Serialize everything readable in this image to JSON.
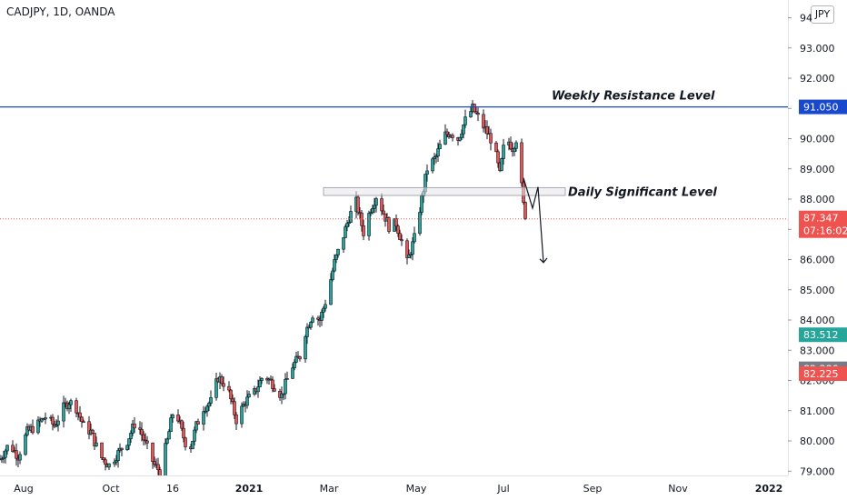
{
  "header": {
    "symbol": "CADJPY, 1D, OANDA",
    "currency": "JPY"
  },
  "colors": {
    "up": "#26a69a",
    "down": "#ef5350",
    "wick": "#131722",
    "resistance": "#1848cc",
    "current_line": "#ef5350",
    "green_badge": "#26a69a",
    "gray_badge": "#787b86",
    "red_badge": "#ef5350",
    "blue_badge": "#1848cc"
  },
  "chart_data": {
    "type": "candlestick",
    "symbol": "CADJPY",
    "timeframe": "1D",
    "source": "OANDA",
    "ylim": [
      78.9,
      94.2
    ],
    "y_ticks": [
      "94",
      "93.000",
      "92.000",
      "91.000",
      "90.000",
      "89.000",
      "88.000",
      "87.000",
      "86.000",
      "85.000",
      "84.000",
      "83.000",
      "82.000",
      "81.000",
      "80.000",
      "79.000"
    ],
    "y_tick_values": [
      94,
      93,
      92,
      91,
      90,
      89,
      88,
      87,
      86,
      85,
      84,
      83,
      82,
      81,
      80,
      79
    ],
    "x_ticks": [
      {
        "label": "Aug",
        "day": 13,
        "bold": false
      },
      {
        "label": "Oct",
        "day": 61,
        "bold": false
      },
      {
        "label": "16",
        "day": 95,
        "bold": false
      },
      {
        "label": "2021",
        "day": 137,
        "bold": true
      },
      {
        "label": "Mar",
        "day": 181,
        "bold": false
      },
      {
        "label": "May",
        "day": 229,
        "bold": false
      },
      {
        "label": "Jul",
        "day": 277,
        "bold": false
      },
      {
        "label": "Sep",
        "day": 326,
        "bold": false
      },
      {
        "label": "Nov",
        "day": 373,
        "bold": false
      },
      {
        "label": "2022",
        "day": 423,
        "bold": true
      }
    ],
    "price_anchors": [
      [
        0,
        79.4
      ],
      [
        5,
        79.9
      ],
      [
        10,
        79.5
      ],
      [
        15,
        80.3
      ],
      [
        20,
        80.5
      ],
      [
        25,
        80.8
      ],
      [
        30,
        80.5
      ],
      [
        35,
        81.1
      ],
      [
        38,
        81.3
      ],
      [
        42,
        81.1
      ],
      [
        46,
        80.5
      ],
      [
        50,
        80.3
      ],
      [
        55,
        79.5
      ],
      [
        60,
        79.2
      ],
      [
        65,
        79.6
      ],
      [
        70,
        80.0
      ],
      [
        75,
        80.7
      ],
      [
        80,
        79.9
      ],
      [
        85,
        79.2
      ],
      [
        88,
        79.0
      ],
      [
        92,
        80.0
      ],
      [
        96,
        81.2
      ],
      [
        100,
        80.3
      ],
      [
        104,
        79.6
      ],
      [
        108,
        80.5
      ],
      [
        112,
        81.1
      ],
      [
        116,
        81.3
      ],
      [
        120,
        82.1
      ],
      [
        125,
        81.8
      ],
      [
        130,
        80.7
      ],
      [
        135,
        81.3
      ],
      [
        140,
        81.6
      ],
      [
        145,
        82.2
      ],
      [
        150,
        81.9
      ],
      [
        155,
        81.5
      ],
      [
        160,
        82.4
      ],
      [
        165,
        82.8
      ],
      [
        168,
        83.6
      ],
      [
        172,
        84.2
      ],
      [
        176,
        84.0
      ],
      [
        180,
        84.8
      ],
      [
        184,
        85.9
      ],
      [
        188,
        86.6
      ],
      [
        192,
        87.4
      ],
      [
        196,
        87.9
      ],
      [
        200,
        86.9
      ],
      [
        204,
        87.7
      ],
      [
        207,
        88.1
      ],
      [
        210,
        87.7
      ],
      [
        214,
        87.1
      ],
      [
        218,
        87.2
      ],
      [
        222,
        86.4
      ],
      [
        224,
        85.9
      ],
      [
        228,
        86.7
      ],
      [
        232,
        88.0
      ],
      [
        235,
        89.0
      ],
      [
        240,
        89.4
      ],
      [
        244,
        90.1
      ],
      [
        248,
        90.2
      ],
      [
        252,
        90.0
      ],
      [
        256,
        90.6
      ],
      [
        260,
        91.0
      ],
      [
        263,
        90.7
      ],
      [
        266,
        90.4
      ],
      [
        270,
        90.0
      ],
      [
        273,
        89.4
      ],
      [
        275,
        88.8
      ],
      [
        278,
        90.1
      ],
      [
        282,
        89.7
      ],
      [
        284,
        90.0
      ],
      [
        286,
        89.0
      ],
      [
        288,
        87.8
      ],
      [
        289,
        87.35
      ]
    ],
    "levels": [
      {
        "name": "Weekly Resistance Level",
        "price": 91.05,
        "type": "horizontal_line"
      },
      {
        "name": "Daily Significant Level",
        "price_top": 88.38,
        "price_bottom": 88.12,
        "type": "zone",
        "day_start": 178,
        "day_end": 311
      }
    ],
    "projection": [
      [
        288,
        88.7
      ],
      [
        293,
        87.7
      ],
      [
        296,
        88.4
      ],
      [
        299,
        85.9
      ]
    ],
    "price_badges": [
      {
        "label": "91.050",
        "price": 91.05,
        "color": "blue"
      },
      {
        "label": "87.347",
        "sub_label": "07:16:02",
        "price": 87.347,
        "color": "red"
      },
      {
        "label": "83.512",
        "price": 83.512,
        "color": "green"
      },
      {
        "label": "82.386",
        "price": 82.386,
        "color": "gray"
      },
      {
        "label": "82.225",
        "price": 82.225,
        "color": "red"
      }
    ]
  },
  "annotations": {
    "weekly": "Weekly Resistance Level",
    "daily": "Daily Significant Level"
  }
}
